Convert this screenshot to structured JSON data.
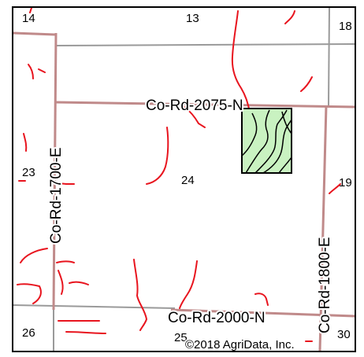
{
  "map": {
    "roads": {
      "north": "Co-Rd-2075-N",
      "south": "Co-Rd-2000-N",
      "west": "Co-Rd-1700-E",
      "east": "Co-Rd-1800-E"
    },
    "sections": {
      "s13": "13",
      "s14": "14",
      "s18": "18",
      "s19": "19",
      "s23": "23",
      "s24": "24",
      "s25": "25",
      "s26": "26",
      "s30": "30"
    },
    "copyright": "©2018 AgriData, Inc.",
    "colors": {
      "road_major": "#c08a8a",
      "road_minor": "#9a9a9a",
      "stream": "#e8141e",
      "field_fill": "#c9f2c1",
      "field_stroke": "#000000"
    }
  }
}
